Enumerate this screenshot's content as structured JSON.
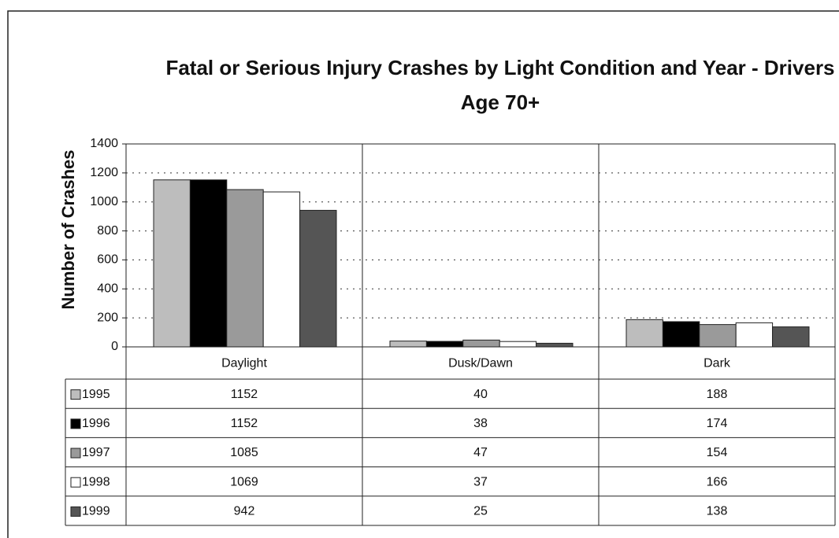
{
  "chart_data": {
    "type": "bar",
    "title": "Fatal or Serious Injury Crashes by Light Condition and Year - Drivers Age 70+",
    "y_label": "Number of Crashes",
    "categories": [
      "Daylight",
      "Dusk/Dawn",
      "Dark"
    ],
    "series": [
      {
        "name": "1995",
        "color": "#bdbdbd",
        "values": [
          1152,
          40,
          188
        ]
      },
      {
        "name": "1996",
        "color": "#000000",
        "values": [
          1152,
          38,
          174
        ]
      },
      {
        "name": "1997",
        "color": "#9a9a9a",
        "values": [
          1085,
          47,
          154
        ]
      },
      {
        "name": "1998",
        "color": "#ffffff",
        "values": [
          1069,
          37,
          166
        ]
      },
      {
        "name": "1999",
        "color": "#555555",
        "values": [
          942,
          25,
          138
        ]
      }
    ],
    "ylim": [
      0,
      1400
    ],
    "yticks": [
      0,
      200,
      400,
      600,
      800,
      1000,
      1200,
      1400
    ],
    "grid": true
  }
}
